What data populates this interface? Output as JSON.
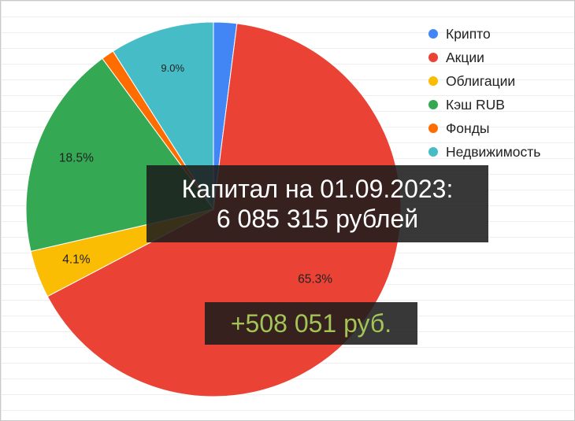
{
  "chart_data": {
    "type": "pie",
    "categories": [
      "Крипто",
      "Акции",
      "Облигации",
      "Кэш RUB",
      "Фонды",
      "Недвижимость"
    ],
    "values": [
      2.0,
      65.3,
      4.1,
      18.5,
      1.1,
      9.0
    ],
    "data_labels": [
      "",
      "65.3%",
      "4.1%",
      "18.5%",
      "",
      "9.0%"
    ],
    "colors": [
      "#4285f4",
      "#ea4335",
      "#fbbc04",
      "#34a853",
      "#ff6d01",
      "#46bdc6"
    ],
    "start_angle_deg": 0,
    "direction": "clockwise",
    "legend_position": "right",
    "title": ""
  },
  "overlays": {
    "capital_line1": "Капитал на 01.09.2023:",
    "capital_line2": "6 085 315 рублей",
    "change": "+508 051 руб."
  }
}
